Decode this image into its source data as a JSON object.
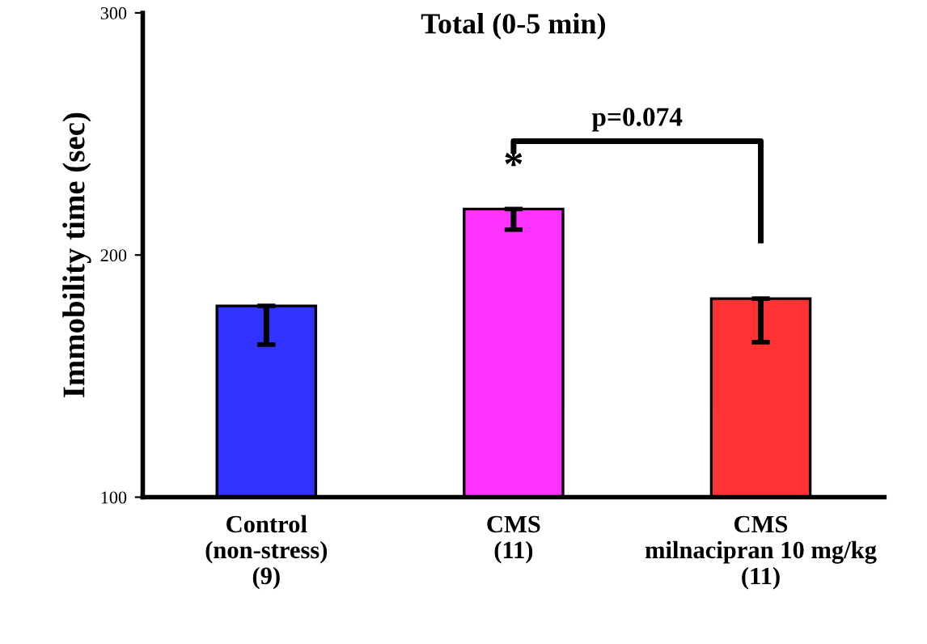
{
  "chart_data": {
    "type": "bar",
    "title": "Total (0-5 min)",
    "ylabel": "Immobility time (sec)",
    "categories": [
      "Control\n(non-stress)\n(9)",
      "CMS\n(11)",
      "CMS\nmilnacipran 10 mg/kg\n(11)"
    ],
    "values": [
      179,
      219,
      182
    ],
    "errors": [
      16,
      8.5,
      18
    ],
    "colors": [
      "#3333ff",
      "#ff33ff",
      "#ff3333"
    ],
    "ylim": [
      100,
      300
    ],
    "yticks": [
      100,
      200,
      300
    ],
    "grid": false,
    "annotations": [
      "*",
      "p=0.074"
    ]
  }
}
